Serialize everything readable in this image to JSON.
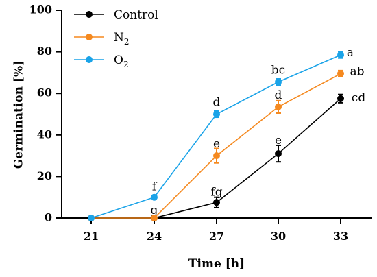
{
  "chart_data": {
    "type": "line",
    "xlabel": "Time [h]",
    "ylabel": "Germination [%]",
    "x": [
      21,
      24,
      27,
      30,
      33
    ],
    "x_ticks": [
      "21",
      "24",
      "27",
      "30",
      "33"
    ],
    "ylim": [
      0,
      100
    ],
    "y_ticks": [
      "0",
      "20",
      "40",
      "60",
      "80",
      "100"
    ],
    "grid": false,
    "legend_position": "top-left",
    "series": [
      {
        "name": "Control",
        "legend_base": "Control",
        "legend_sub": "",
        "color": "#000000",
        "values": [
          0,
          0,
          7.5,
          31,
          57.5
        ],
        "errors": [
          0,
          0,
          2.5,
          4,
          2
        ],
        "labels": [
          "",
          "g",
          "fg",
          "e",
          "cd"
        ]
      },
      {
        "name": "N2",
        "legend_base": "N",
        "legend_sub": "2",
        "color": "#f5891f",
        "values": [
          0,
          0,
          30,
          53.5,
          69.5
        ],
        "errors": [
          0,
          0,
          3.5,
          3,
          1.5
        ],
        "labels": [
          "",
          "",
          "e",
          "d",
          "ab"
        ]
      },
      {
        "name": "O2",
        "legend_base": "O",
        "legend_sub": "2",
        "color": "#1aa3e8",
        "values": [
          0,
          10,
          50,
          65.5,
          78.5
        ],
        "errors": [
          0,
          0,
          1.5,
          1.5,
          1.5
        ],
        "labels": [
          "",
          "f",
          "d",
          "bc",
          "a"
        ]
      }
    ]
  }
}
